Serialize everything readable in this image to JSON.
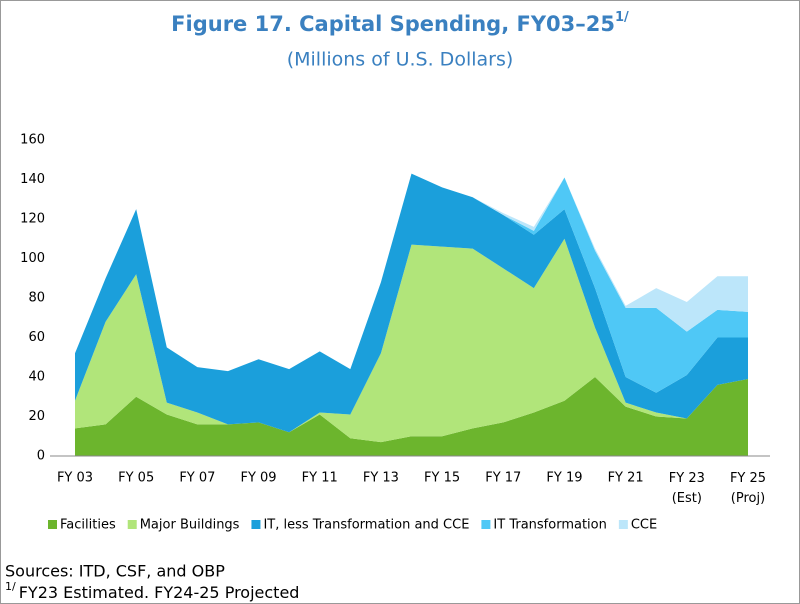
{
  "chart_data": {
    "type": "stacked_area",
    "title": "Figure 17. Capital Spending, FY03–25",
    "title_note_marker": "1/",
    "subtitle": "(Millions of U.S. Dollars)",
    "categories": [
      "FY 03",
      null,
      "FY 05",
      null,
      "FY 07",
      null,
      "FY 09",
      null,
      "FY 11",
      null,
      "FY 13",
      null,
      "FY 15",
      null,
      "FY 17",
      null,
      "FY 19",
      null,
      "FY 21",
      null,
      "FY 23\n(Est)",
      null,
      "FY 25\n(Proj)"
    ],
    "series": [
      {
        "name": "Facilities",
        "color": "#6cb52d",
        "values": [
          14,
          16,
          30,
          21,
          16,
          16,
          17,
          12,
          21,
          9,
          7,
          10,
          10,
          14,
          17,
          22,
          28,
          40,
          25,
          20,
          19,
          36,
          39
        ]
      },
      {
        "name": "Major Buildings",
        "color": "#b1e57a",
        "values": [
          14,
          52,
          62,
          6,
          6,
          0,
          0,
          0,
          1,
          12,
          45,
          97,
          96,
          91,
          78,
          63,
          82,
          25,
          2,
          2,
          0,
          0,
          0
        ]
      },
      {
        "name": "IT, less Transformation and CCE",
        "color": "#1b9fdb",
        "values": [
          24,
          22,
          33,
          28,
          23,
          27,
          32,
          32,
          31,
          23,
          36,
          36,
          30,
          26,
          27,
          27,
          15,
          20,
          13,
          10,
          22,
          24,
          21
        ]
      },
      {
        "name": "IT Transformation",
        "color": "#4fc8f6",
        "values": [
          0,
          0,
          0,
          0,
          0,
          0,
          0,
          0,
          0,
          0,
          0,
          0,
          0,
          0,
          0,
          2,
          16,
          19,
          35,
          43,
          22,
          14,
          13
        ]
      },
      {
        "name": "CCE",
        "color": "#bce6fa",
        "values": [
          0,
          0,
          0,
          0,
          0,
          0,
          0,
          0,
          0,
          0,
          0,
          0,
          0,
          0,
          1,
          2,
          0,
          1,
          1,
          10,
          15,
          17,
          18
        ]
      }
    ],
    "ylim": [
      0,
      160
    ],
    "yticks": [
      0,
      20,
      40,
      60,
      80,
      100,
      120,
      140,
      160
    ],
    "grid": false,
    "legend": "bottom",
    "source": "Sources: ITD, CSF, and OBP",
    "footnote": {
      "marker": "1/",
      "text": "FY23 Estimated. FY24-25 Projected"
    }
  }
}
